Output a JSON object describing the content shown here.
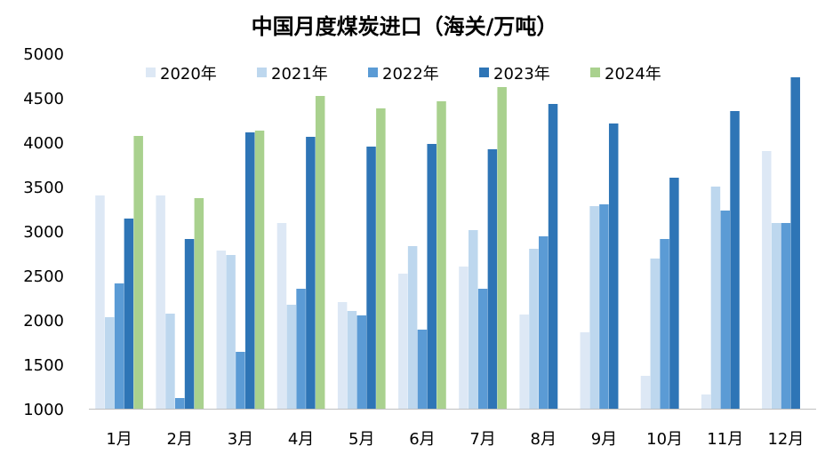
{
  "chart_data": {
    "type": "bar",
    "title": "中国月度煤炭进口（海关/万吨）",
    "xlabel": "",
    "ylabel": "",
    "ylim": [
      1000,
      5000
    ],
    "yticks": [
      1000,
      1500,
      2000,
      2500,
      3000,
      3500,
      4000,
      4500,
      5000
    ],
    "grid": false,
    "legend_position": "top",
    "categories": [
      "1月",
      "2月",
      "3月",
      "4月",
      "5月",
      "6月",
      "7月",
      "8月",
      "9月",
      "10月",
      "11月",
      "12月"
    ],
    "series": [
      {
        "name": "2020年",
        "color": "#dde8f5",
        "values": [
          3400,
          3400,
          2780,
          3090,
          2200,
          2520,
          2600,
          2060,
          1860,
          1370,
          1160,
          3900
        ]
      },
      {
        "name": "2021年",
        "color": "#bdd7ee",
        "values": [
          2030,
          2070,
          2730,
          2170,
          2100,
          2830,
          3010,
          2800,
          3280,
          2690,
          3500,
          3090
        ]
      },
      {
        "name": "2022年",
        "color": "#5b9bd5",
        "values": [
          2410,
          1120,
          1640,
          2350,
          2050,
          1890,
          2350,
          2940,
          3300,
          2910,
          3230,
          3090
        ]
      },
      {
        "name": "2023年",
        "color": "#2e75b6",
        "values": [
          3140,
          2910,
          4110,
          4060,
          3950,
          3980,
          3920,
          4430,
          4210,
          3600,
          4350,
          4730
        ]
      },
      {
        "name": "2024年",
        "color": "#a9d18e",
        "values": [
          4070,
          3370,
          4130,
          4520,
          4380,
          4460,
          4620,
          null,
          null,
          null,
          null,
          null
        ]
      }
    ]
  }
}
